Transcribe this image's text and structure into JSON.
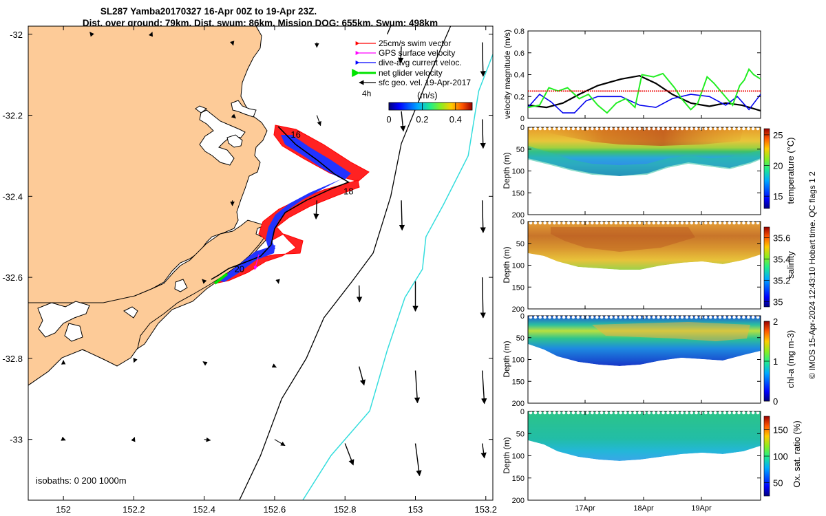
{
  "title": {
    "line1": "SL287 Yamba20170327 16-Apr 00Z to 19-Apr 23Z.",
    "line2": "Dist. over ground: 79km. Dist. swum: 86km. Mission DOG: 655km. Swum: 498km"
  },
  "footer": "© IMOS 15-Apr-2024 12:43:10 Hobart time. QC flags 1  2",
  "colors": {
    "land": "#FDCB98",
    "swim": "#FF0000",
    "gps": "#FF00FF",
    "current": "#0000FF",
    "glider": "#00E400",
    "sfc": "#000000",
    "isobath200": "#000000",
    "isobath1000": "#33DDDD"
  },
  "chart_data": [
    {
      "type": "map",
      "xlim": [
        151.9,
        153.22
      ],
      "ylim": [
        -33.15,
        -31.98
      ],
      "xticks": [
        "152",
        "152.2",
        "152.4",
        "152.6",
        "152.8",
        "153",
        "153.2"
      ],
      "yticks": [
        "-32",
        "-32.2",
        "-32.4",
        "-32.6",
        "-32.8",
        "-33"
      ],
      "legend": {
        "items": [
          {
            "label": "25cm/s swim vector",
            "key": "swim"
          },
          {
            "label": "GPS surface velocity",
            "key": "gps"
          },
          {
            "label": "dive-avg current veloc.",
            "key": "current"
          },
          {
            "label": "net glider velocity",
            "key": "glider"
          },
          {
            "label": "sfc geo. vel. 19-Apr-2017",
            "key": "sfc"
          }
        ],
        "interval": "4h"
      },
      "colorbar": {
        "label": "(m/s)",
        "ticks": [
          "0",
          "0.2",
          "0.4"
        ],
        "range": [
          0,
          0.5
        ]
      },
      "track": [
        [
          152.61,
          -32.228
        ],
        [
          152.66,
          -32.272
        ],
        [
          152.72,
          -32.31
        ],
        [
          152.77,
          -32.345
        ],
        [
          152.81,
          -32.365
        ],
        [
          152.76,
          -32.382
        ],
        [
          152.69,
          -32.41
        ],
        [
          152.63,
          -32.44
        ],
        [
          152.6,
          -32.48
        ],
        [
          152.59,
          -32.52
        ],
        [
          152.56,
          -32.548
        ],
        [
          152.51,
          -32.565
        ],
        [
          152.47,
          -32.578
        ],
        [
          152.44,
          -32.595
        ],
        [
          152.42,
          -32.605
        ]
      ],
      "track_labels": [
        {
          "text": "16",
          "lon": 152.66,
          "lat": -32.255
        },
        {
          "text": "18",
          "lon": 152.81,
          "lat": -32.395
        },
        {
          "text": "20",
          "lon": 152.5,
          "lat": -32.587
        }
      ],
      "isobaths_label": "isobaths: 0   200  1000m",
      "isobath200": [
        [
          153.1,
          -31.98
        ],
        [
          153.04,
          -32.1
        ],
        [
          152.96,
          -32.27
        ],
        [
          152.93,
          -32.4
        ],
        [
          152.88,
          -32.54
        ],
        [
          152.82,
          -32.61
        ],
        [
          152.74,
          -32.7
        ],
        [
          152.69,
          -32.8
        ],
        [
          152.62,
          -32.9
        ],
        [
          152.56,
          -33.04
        ],
        [
          152.5,
          -33.15
        ]
      ],
      "isobath1000": [
        [
          153.22,
          -32.05
        ],
        [
          153.18,
          -32.14
        ],
        [
          153.15,
          -32.3
        ],
        [
          153.08,
          -32.42
        ],
        [
          153.03,
          -32.5
        ],
        [
          153.02,
          -32.58
        ],
        [
          152.97,
          -32.65
        ],
        [
          152.92,
          -32.78
        ],
        [
          152.87,
          -32.93
        ],
        [
          152.76,
          -33.04
        ],
        [
          152.68,
          -33.15
        ]
      ],
      "arrows": [
        {
          "lon": 152.08,
          "lat": -32.0,
          "u": -0.04,
          "v": 0.05
        },
        {
          "lon": 152.25,
          "lat": -32.0,
          "u": 0.02,
          "v": 0.05
        },
        {
          "lon": 152.48,
          "lat": -32.02,
          "u": 0.02,
          "v": -0.07
        },
        {
          "lon": 152.72,
          "lat": -32.02,
          "u": 0.0,
          "v": -0.12
        },
        {
          "lon": 152.96,
          "lat": -32.03,
          "u": -0.02,
          "v": -0.4
        },
        {
          "lon": 153.19,
          "lat": -32.02,
          "u": 0.02,
          "v": -0.82
        },
        {
          "lon": 152.92,
          "lat": -32.0,
          "u": 0.22,
          "v": 0.52
        },
        {
          "lon": 152.48,
          "lat": -32.2,
          "u": 0.08,
          "v": -0.07
        },
        {
          "lon": 152.72,
          "lat": -32.2,
          "u": 0.09,
          "v": -0.25
        },
        {
          "lon": 152.96,
          "lat": -32.19,
          "u": 0.05,
          "v": -0.48
        },
        {
          "lon": 153.19,
          "lat": -32.21,
          "u": 0.02,
          "v": -0.7
        },
        {
          "lon": 152.48,
          "lat": -32.41,
          "u": 0.0,
          "v": -0.13
        },
        {
          "lon": 152.72,
          "lat": -32.41,
          "u": -0.02,
          "v": -0.45
        },
        {
          "lon": 152.96,
          "lat": -32.41,
          "u": 0.02,
          "v": -0.72
        },
        {
          "lon": 153.19,
          "lat": -32.41,
          "u": 0.02,
          "v": -0.78
        },
        {
          "lon": 152.4,
          "lat": -32.61,
          "u": -0.05,
          "v": 0.05
        },
        {
          "lon": 152.61,
          "lat": -32.61,
          "u": 0.01,
          "v": -0.05
        },
        {
          "lon": 152.84,
          "lat": -32.62,
          "u": 0.01,
          "v": -0.4
        },
        {
          "lon": 153.0,
          "lat": -32.61,
          "u": 0.0,
          "v": -0.72
        },
        {
          "lon": 153.19,
          "lat": -32.6,
          "u": 0.02,
          "v": -0.98
        },
        {
          "lon": 152.0,
          "lat": -32.81,
          "u": 0.0,
          "v": 0.05
        },
        {
          "lon": 152.2,
          "lat": -32.81,
          "u": 0.0,
          "v": 0.0
        },
        {
          "lon": 152.4,
          "lat": -32.81,
          "u": -0.03,
          "v": 0.02
        },
        {
          "lon": 152.6,
          "lat": -32.82,
          "u": 0.04,
          "v": -0.02
        },
        {
          "lon": 152.84,
          "lat": -32.82,
          "u": 0.12,
          "v": -0.45
        },
        {
          "lon": 153.0,
          "lat": -32.83,
          "u": 0.05,
          "v": -0.78
        },
        {
          "lon": 153.19,
          "lat": -32.83,
          "u": 0.05,
          "v": -0.8
        },
        {
          "lon": 152.0,
          "lat": -33.0,
          "u": 0.05,
          "v": -0.02
        },
        {
          "lon": 152.2,
          "lat": -33.0,
          "u": 0.02,
          "v": 0.05
        },
        {
          "lon": 152.4,
          "lat": -33.0,
          "u": 0.15,
          "v": -0.02
        },
        {
          "lon": 152.6,
          "lat": -33.0,
          "u": 0.25,
          "v": -0.15
        },
        {
          "lon": 152.8,
          "lat": -33.01,
          "u": 0.2,
          "v": -0.52
        },
        {
          "lon": 153.0,
          "lat": -33.01,
          "u": 0.1,
          "v": -0.78
        },
        {
          "lon": 153.19,
          "lat": -33.01,
          "u": 0.05,
          "v": -0.35
        }
      ]
    },
    {
      "type": "line",
      "ylabel": "velocity magnitude (m/s)",
      "xlim": [
        0,
        100
      ],
      "ylim": [
        0,
        0.8
      ],
      "yticks": [
        "0",
        "0.2",
        "0.4",
        "0.6",
        "0.8"
      ],
      "series": [
        {
          "key": "black",
          "color": "#000000",
          "x": [
            0,
            8,
            15,
            22,
            30,
            40,
            48,
            55,
            62,
            70,
            78,
            85,
            92,
            100
          ],
          "y": [
            0.12,
            0.1,
            0.14,
            0.22,
            0.3,
            0.36,
            0.39,
            0.32,
            0.22,
            0.14,
            0.11,
            0.14,
            0.12,
            0.07
          ]
        },
        {
          "key": "blue",
          "color": "#0000EE",
          "x": [
            0,
            5,
            10,
            15,
            20,
            25,
            30,
            40,
            48,
            55,
            62,
            70,
            78,
            85,
            90,
            95,
            100
          ],
          "y": [
            0.1,
            0.22,
            0.15,
            0.05,
            0.05,
            0.16,
            0.2,
            0.2,
            0.12,
            0.1,
            0.18,
            0.22,
            0.2,
            0.12,
            0.2,
            0.08,
            0.22
          ]
        },
        {
          "key": "green",
          "color": "#22EE22",
          "x": [
            0,
            5,
            9,
            13,
            17,
            22,
            26,
            30,
            34,
            38,
            42,
            46,
            49,
            54,
            58,
            63,
            66,
            70,
            73,
            77,
            80,
            84,
            88,
            91,
            93,
            95,
            97,
            100
          ],
          "y": [
            0.1,
            0.12,
            0.28,
            0.25,
            0.28,
            0.18,
            0.22,
            0.12,
            0.05,
            0.14,
            0.18,
            0.1,
            0.4,
            0.38,
            0.41,
            0.28,
            0.18,
            0.08,
            0.14,
            0.38,
            0.32,
            0.22,
            0.12,
            0.3,
            0.35,
            0.45,
            0.4,
            0.36
          ]
        },
        {
          "key": "red",
          "color": "#EE0000",
          "x": [
            0,
            100
          ],
          "y": [
            0.25,
            0.25
          ]
        }
      ]
    },
    {
      "type": "heatmap",
      "ylabel": "Depth (m)",
      "colorbar_label": "temperature (°C)",
      "ylim": [
        200,
        0
      ],
      "yticks": [
        "0",
        "50",
        "100",
        "150",
        "200"
      ],
      "cticks": [
        "15",
        "20",
        "25"
      ],
      "crange": [
        13,
        26
      ]
    },
    {
      "type": "heatmap",
      "ylabel": "Depth (m)",
      "colorbar_label": "salinity",
      "ylim": [
        200,
        0
      ],
      "yticks": [
        "0",
        "50",
        "100",
        "150",
        "200"
      ],
      "cticks": [
        "35",
        "35.2",
        "35.4",
        "35.6"
      ],
      "crange": [
        34.95,
        35.7
      ]
    },
    {
      "type": "heatmap",
      "ylabel": "Depth (m)",
      "colorbar_label": "chl-a (mg m-3)",
      "ylim": [
        200,
        0
      ],
      "yticks": [
        "0",
        "50",
        "100",
        "150",
        "200"
      ],
      "cticks": [
        "0",
        "1",
        "2"
      ],
      "crange": [
        0,
        2
      ]
    },
    {
      "type": "heatmap",
      "ylabel": "Depth (m)",
      "colorbar_label": "Ox. sat. ratio (%)",
      "ylim": [
        200,
        0
      ],
      "yticks": [
        "0",
        "50",
        "100",
        "150",
        "200"
      ],
      "xticks": [
        "17Apr",
        "18Apr",
        "19Apr"
      ],
      "cticks": [
        "50",
        "100",
        "150"
      ],
      "crange": [
        25,
        175
      ]
    }
  ]
}
